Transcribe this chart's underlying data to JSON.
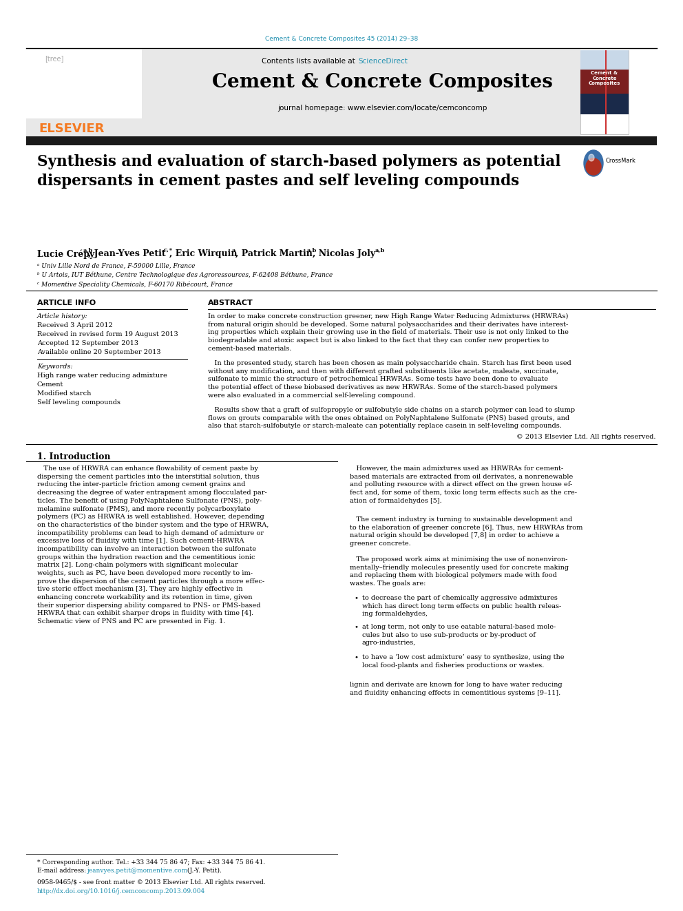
{
  "journal_ref": "Cement & Concrete Composites 45 (2014) 29–38",
  "sciencedirect": "ScienceDirect",
  "journal_name": "Cement & Concrete Composites",
  "journal_homepage": "journal homepage: www.elsevier.com/locate/cemconcomp",
  "title_line1": "Synthesis and evaluation of starch-based polymers as potential",
  "title_line2": "dispersants in cement pastes and self leveling compounds",
  "affil_a": "ᵃ Univ Lille Nord de France, F-59000 Lille, France",
  "affil_b": "ᵇ U Artois, IUT Béthune, Centre Technologique des Agroressources, F-62408 Béthune, France",
  "affil_c": "ᶜ Momentive Speciality Chemicals, F-60170 Ribécourt, France",
  "article_info_header": "ARTICLE INFO",
  "article_history_label": "Article history:",
  "received": "Received 3 April 2012",
  "revised": "Received in revised form 19 August 2013",
  "accepted": "Accepted 12 September 2013",
  "available": "Available online 20 September 2013",
  "keywords_label": "Keywords:",
  "kw1": "High range water reducing admixture",
  "kw2": "Cement",
  "kw3": "Modified starch",
  "kw4": "Self leveling compounds",
  "abstract_header": "ABSTRACT",
  "intro_header": "1. Introduction",
  "bullet1": "to decrease the part of chemically aggressive admixtures\nwhich has direct long term effects on public health releas-\ning formaldehydes,",
  "bullet2": "at long term, not only to use eatable natural-based mole-\ncules but also to use sub-products or by-product of\nagro-industries,",
  "bullet3": "to have a ‘low cost admixture’ easy to synthesize, using the\nlocal food-plants and fisheries productions or wastes.",
  "footnote1": "* Corresponding author. Tel.: +33 344 75 86 47; Fax: +33 344 75 86 41.",
  "footnote_email_pre": "E-mail address: ",
  "footnote_email": "jeanvyes.petit@momentive.com",
  "footnote_email_post": " (J.-Y. Petit).",
  "issn": "0958-9465/$ - see front matter © 2013 Elsevier Ltd. All rights reserved.",
  "doi": "http://dx.doi.org/10.1016/j.cemconcomp.2013.09.004",
  "abstract_copyright": "© 2013 Elsevier Ltd. All rights reserved.",
  "bg_color": "#ffffff",
  "header_bg": "#e8e8e8",
  "elsevier_orange": "#f47920",
  "link_color": "#2090b0",
  "dark_bar_color": "#1a1a1a",
  "journal_box_red": "#7b2020",
  "journal_box_dark": "#1a2a4a",
  "journal_box_light": "#c8d8e8"
}
